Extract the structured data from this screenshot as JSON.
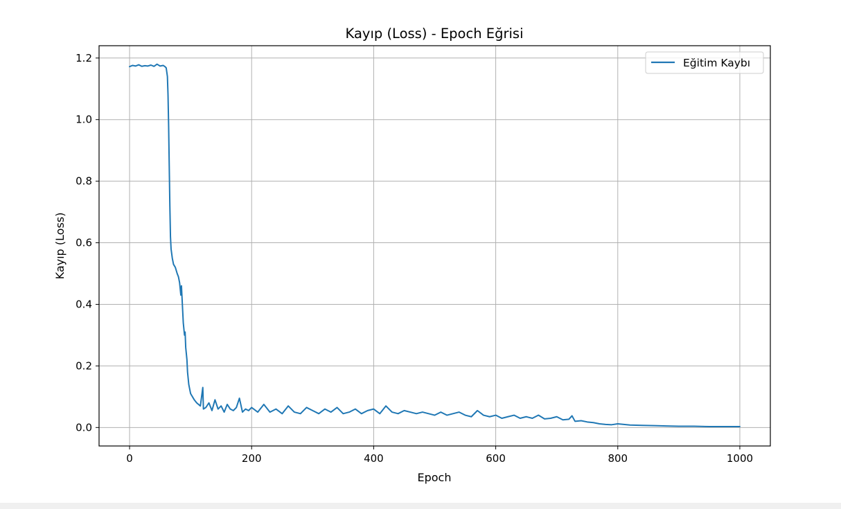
{
  "chart_data": {
    "type": "line",
    "title": "Kayıp (Loss) - Epoch Eğrisi",
    "xlabel": "Epoch",
    "ylabel": "Kayıp (Loss)",
    "xlim": [
      -50,
      1050
    ],
    "ylim": [
      -0.06,
      1.24
    ],
    "xticks": [
      0,
      200,
      400,
      600,
      800,
      1000
    ],
    "xtick_labels": [
      "0",
      "200",
      "400",
      "600",
      "800",
      "1000"
    ],
    "yticks": [
      0.0,
      0.2,
      0.4,
      0.6,
      0.8,
      1.0,
      1.2
    ],
    "ytick_labels": [
      "0.0",
      "0.2",
      "0.4",
      "0.6",
      "0.8",
      "1.0",
      "1.2"
    ],
    "grid": true,
    "legend_position": "top-right",
    "series": [
      {
        "name": "Eğitim Kaybı",
        "color": "#1f77b4",
        "x": [
          0,
          5,
          10,
          15,
          20,
          25,
          30,
          35,
          40,
          45,
          50,
          55,
          58,
          60,
          62,
          63,
          64,
          65,
          66,
          67,
          68,
          70,
          72,
          75,
          78,
          80,
          82,
          84,
          85,
          86,
          87,
          88,
          90,
          91,
          92,
          93,
          94,
          95,
          96,
          97,
          98,
          100,
          103,
          106,
          110,
          113,
          116,
          120,
          121,
          125,
          130,
          135,
          140,
          145,
          150,
          155,
          160,
          165,
          170,
          175,
          180,
          185,
          190,
          195,
          200,
          210,
          220,
          230,
          240,
          250,
          260,
          270,
          280,
          290,
          300,
          310,
          320,
          330,
          340,
          350,
          360,
          370,
          380,
          390,
          400,
          410,
          420,
          430,
          440,
          450,
          460,
          470,
          480,
          490,
          500,
          510,
          520,
          530,
          540,
          550,
          560,
          570,
          580,
          590,
          600,
          610,
          620,
          630,
          640,
          650,
          660,
          670,
          680,
          690,
          700,
          710,
          720,
          725,
          730,
          740,
          750,
          760,
          770,
          780,
          790,
          800,
          820,
          840,
          860,
          880,
          900,
          925,
          950,
          975,
          1000
        ],
        "values": [
          1.172,
          1.176,
          1.174,
          1.178,
          1.173,
          1.175,
          1.174,
          1.177,
          1.173,
          1.18,
          1.174,
          1.176,
          1.172,
          1.168,
          1.14,
          1.08,
          0.98,
          0.85,
          0.72,
          0.62,
          0.58,
          0.55,
          0.53,
          0.52,
          0.5,
          0.49,
          0.47,
          0.43,
          0.46,
          0.42,
          0.38,
          0.34,
          0.3,
          0.31,
          0.26,
          0.24,
          0.22,
          0.18,
          0.16,
          0.14,
          0.13,
          0.11,
          0.1,
          0.09,
          0.08,
          0.075,
          0.07,
          0.13,
          0.06,
          0.065,
          0.08,
          0.055,
          0.09,
          0.06,
          0.07,
          0.05,
          0.075,
          0.06,
          0.055,
          0.065,
          0.095,
          0.05,
          0.06,
          0.055,
          0.065,
          0.05,
          0.075,
          0.05,
          0.06,
          0.045,
          0.07,
          0.05,
          0.045,
          0.065,
          0.055,
          0.045,
          0.06,
          0.05,
          0.065,
          0.045,
          0.05,
          0.06,
          0.045,
          0.055,
          0.06,
          0.045,
          0.07,
          0.05,
          0.045,
          0.055,
          0.05,
          0.045,
          0.05,
          0.045,
          0.04,
          0.05,
          0.04,
          0.045,
          0.05,
          0.04,
          0.035,
          0.055,
          0.04,
          0.035,
          0.04,
          0.03,
          0.035,
          0.04,
          0.03,
          0.035,
          0.03,
          0.04,
          0.028,
          0.03,
          0.035,
          0.025,
          0.027,
          0.038,
          0.02,
          0.022,
          0.018,
          0.016,
          0.012,
          0.01,
          0.009,
          0.012,
          0.008,
          0.007,
          0.006,
          0.005,
          0.004,
          0.004,
          0.003,
          0.003,
          0.003
        ]
      }
    ]
  }
}
